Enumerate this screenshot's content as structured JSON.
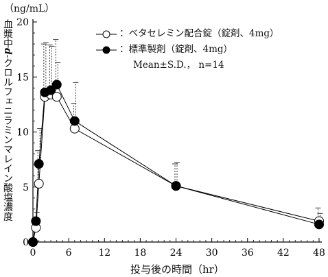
{
  "y_unit": "（ng/mL）",
  "y_axis_label": "血漿中",
  "y_axis_label_italic": "d",
  "y_axis_label_rest": "-クロルフェニラミンマレイン酸塩濃度",
  "chart_data": {
    "type": "line",
    "xlabel": "投与後の時間（hr）",
    "ylabel": "血漿中d-クロルフェニラミンマレイン酸塩濃度（ng/mL）",
    "xlim": [
      0,
      48
    ],
    "ylim": [
      0,
      20
    ],
    "x_ticks": [
      0,
      6,
      12,
      18,
      24,
      30,
      36,
      42,
      48
    ],
    "y_ticks": [
      0,
      5,
      10,
      15,
      20
    ],
    "grid": false,
    "legend_position": "top-right",
    "legend_note": "Mean±S.D.， n=14",
    "series": [
      {
        "name": "：ベタセレミン配合錠（錠剤、4mg）",
        "marker": "open-circle",
        "color": "#000000",
        "x": [
          0,
          0.5,
          1,
          2,
          3,
          4,
          7,
          24,
          48
        ],
        "y": [
          0.0,
          1.3,
          5.3,
          13.2,
          13.4,
          13.2,
          10.3,
          5.1,
          1.9
        ],
        "sd": [
          0.0,
          0.6,
          3.0,
          4.8,
          4.5,
          5.2,
          2.3,
          2.0,
          1.2
        ]
      },
      {
        "name": "：標準製剤（錠剤、4mg）",
        "marker": "filled-circle",
        "color": "#000000",
        "x": [
          0,
          0.5,
          1,
          2,
          3,
          4,
          7,
          24,
          48
        ],
        "y": [
          0.0,
          1.9,
          7.1,
          13.6,
          13.8,
          14.3,
          11.0,
          5.1,
          1.6
        ],
        "sd": [
          0.0,
          0.8,
          3.2,
          4.5,
          4.0,
          2.0,
          3.5,
          2.1,
          1.0
        ]
      }
    ]
  }
}
